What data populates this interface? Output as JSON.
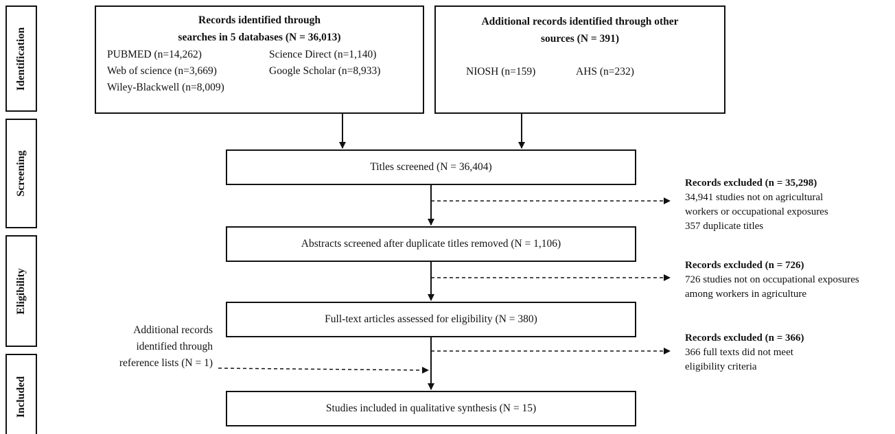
{
  "phases": {
    "identification": "Identification",
    "screening": "Screening",
    "eligibility": "Eligibility",
    "included": "Included"
  },
  "databases_box": {
    "title_line1": "Records identified through",
    "title_line2": "searches in 5 databases (N = 36,013)",
    "sources": [
      "PUBMED (n=14,262)",
      "Science Direct (n=1,140)",
      "Web of science (n=3,669)",
      "Google Scholar (n=8,933)",
      "Wiley-Blackwell (n=8,009)"
    ]
  },
  "other_sources_box": {
    "title_line1": "Additional records identified through other",
    "title_line2": "sources (N = 391)",
    "sources": [
      "NIOSH (n=159)",
      "AHS (n=232)"
    ]
  },
  "titles_screened": "Titles screened (N = 36,404)",
  "abstracts_screened": "Abstracts screened after duplicate titles removed  (N = 1,106)",
  "fulltext_assessed": "Full-text articles assessed for eligibility  (N = 380)",
  "studies_included": "Studies included in qualitative synthesis  (N = 15)",
  "excluded_1": {
    "title": "Records excluded (n = 35,298)",
    "lines": [
      "34,941 studies not on agricultural",
      "workers or occupational exposures",
      "357 duplicate titles"
    ]
  },
  "excluded_2": {
    "title": "Records excluded (n = 726)",
    "lines": [
      "726 studies not on occupational exposures",
      "among workers in agriculture"
    ]
  },
  "excluded_3": {
    "title": "Records excluded (n = 366)",
    "lines": [
      "366 full texts did not meet",
      "eligibility criteria"
    ]
  },
  "reference_lists": {
    "lines": [
      "Additional records",
      "identified through",
      "reference lists (N = 1)"
    ]
  },
  "colors": {
    "line": "#111111",
    "background": "#ffffff"
  }
}
